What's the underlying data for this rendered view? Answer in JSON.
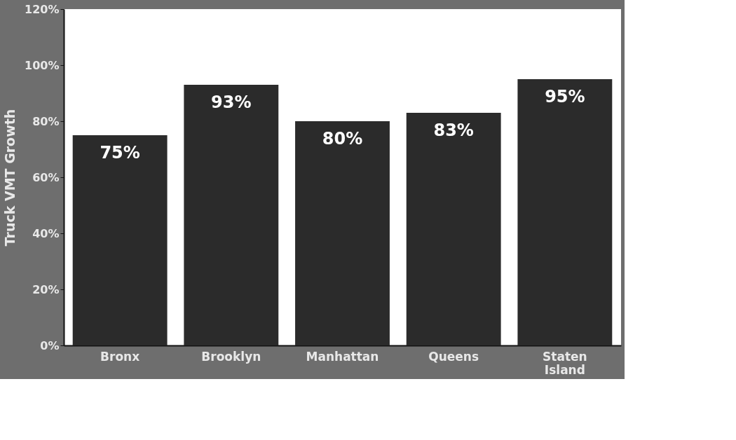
{
  "chart_data": {
    "type": "bar",
    "ylabel": "Truck VMT Growth",
    "categories": [
      "Bronx",
      "Brooklyn",
      "Manhattan",
      "Queens",
      "Staten Island"
    ],
    "values": [
      75,
      93,
      80,
      83,
      95
    ],
    "value_labels": [
      "75%",
      "93%",
      "80%",
      "83%",
      "95%"
    ],
    "color": "#2b2b2b",
    "ylim": [
      0,
      120
    ],
    "yticks": [
      {
        "value": 0,
        "label": "0%"
      },
      {
        "value": 20,
        "label": "20%"
      },
      {
        "value": 40,
        "label": "40%"
      },
      {
        "value": 60,
        "label": "60%"
      },
      {
        "value": 80,
        "label": "80%"
      },
      {
        "value": 100,
        "label": "100%"
      },
      {
        "value": 120,
        "label": "120%"
      }
    ],
    "grid": false
  }
}
